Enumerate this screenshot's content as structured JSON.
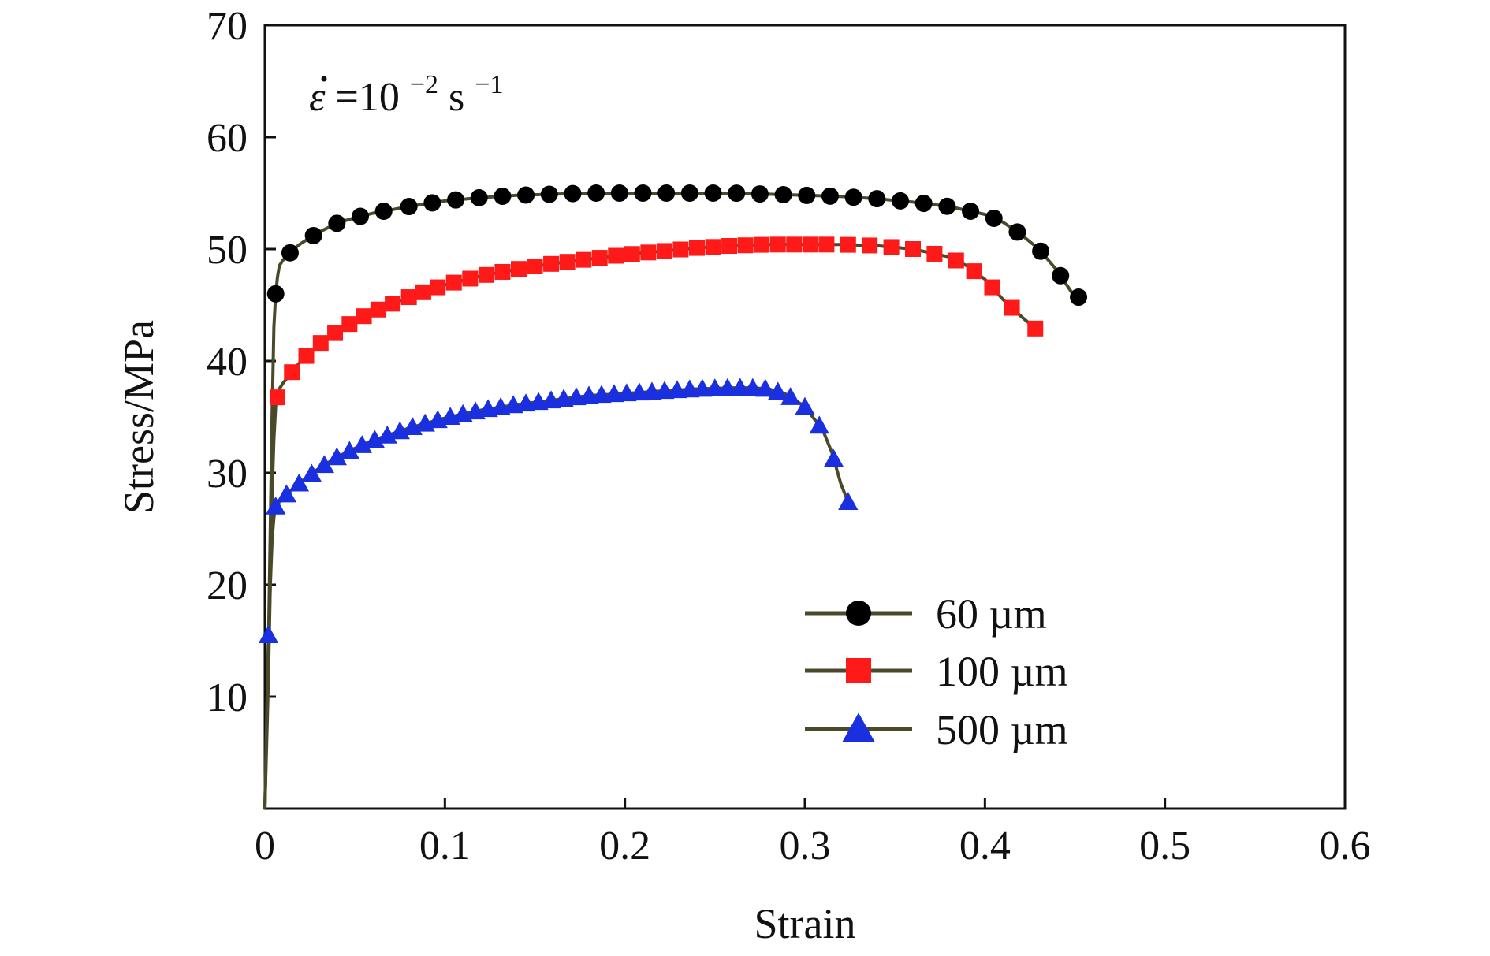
{
  "chart_data": {
    "type": "line",
    "title": "",
    "xlabel": "Strain",
    "ylabel": "Stress/MPa",
    "xlim": [
      0,
      0.6
    ],
    "ylim": [
      0,
      70
    ],
    "xticks": [
      0,
      0.1,
      0.2,
      0.3,
      0.4,
      0.5,
      0.6
    ],
    "xtick_labels": [
      "0",
      "0.1",
      "0.2",
      "0.3",
      "0.4",
      "0.5",
      "0.6"
    ],
    "yticks": [
      10,
      20,
      30,
      40,
      50,
      60,
      70
    ],
    "ytick_labels": [
      "10",
      "20",
      "30",
      "40",
      "50",
      "60",
      "70"
    ],
    "grid": false,
    "legend_position": "bottom-right",
    "annotation": {
      "symbol": "ε",
      "eq": "=10",
      "exp": "−2",
      "unit": " s",
      "unit_exp": "−1"
    },
    "line_color": "#4a4a2a",
    "series": [
      {
        "name": "60 µm",
        "color": "#000000",
        "marker": "circle",
        "x": [
          0.0,
          0.002,
          0.004,
          0.005,
          0.006,
          0.007,
          0.008,
          0.01,
          0.013,
          0.016,
          0.02,
          0.025,
          0.03,
          0.04,
          0.05,
          0.06,
          0.07,
          0.08,
          0.1,
          0.12,
          0.14,
          0.16,
          0.18,
          0.2,
          0.22,
          0.24,
          0.26,
          0.28,
          0.3,
          0.32,
          0.34,
          0.36,
          0.38,
          0.4,
          0.41,
          0.42,
          0.43,
          0.44,
          0.45
        ],
        "y": [
          0,
          15,
          35,
          43,
          46,
          47.5,
          48.5,
          49,
          49.5,
          50,
          50.5,
          51,
          51.5,
          52.3,
          52.8,
          53.2,
          53.5,
          53.8,
          54.3,
          54.6,
          54.8,
          54.9,
          55.0,
          55.0,
          55.0,
          55.0,
          55.0,
          54.9,
          54.8,
          54.7,
          54.5,
          54.2,
          53.8,
          53.1,
          52.4,
          51.3,
          50.0,
          48.1,
          45.7
        ],
        "marker_x": [
          0.006,
          0.014,
          0.027,
          0.04,
          0.053,
          0.066,
          0.08,
          0.093,
          0.106,
          0.119,
          0.132,
          0.145,
          0.158,
          0.171,
          0.184,
          0.197,
          0.21,
          0.223,
          0.236,
          0.249,
          0.262,
          0.275,
          0.288,
          0.301,
          0.314,
          0.327,
          0.34,
          0.353,
          0.366,
          0.379,
          0.392,
          0.405,
          0.418,
          0.431,
          0.442,
          0.452
        ]
      },
      {
        "name": "100 µm",
        "color": "#ff1a1a",
        "marker": "square",
        "x": [
          0.0,
          0.002,
          0.004,
          0.005,
          0.006,
          0.008,
          0.01,
          0.015,
          0.02,
          0.03,
          0.04,
          0.05,
          0.06,
          0.08,
          0.1,
          0.12,
          0.14,
          0.16,
          0.18,
          0.2,
          0.22,
          0.24,
          0.26,
          0.28,
          0.3,
          0.32,
          0.34,
          0.36,
          0.38,
          0.39,
          0.4,
          0.41,
          0.42,
          0.428
        ],
        "y": [
          0,
          12,
          28,
          33,
          36,
          37.5,
          38.0,
          39.0,
          40.0,
          41.5,
          42.6,
          43.6,
          44.4,
          45.7,
          46.8,
          47.6,
          48.2,
          48.7,
          49.1,
          49.5,
          49.8,
          50.1,
          50.3,
          50.4,
          50.4,
          50.4,
          50.3,
          50.0,
          49.3,
          48.5,
          47.3,
          45.5,
          44.0,
          42.9
        ],
        "marker_x": [
          0.007,
          0.015,
          0.023,
          0.031,
          0.039,
          0.047,
          0.055,
          0.063,
          0.071,
          0.08,
          0.088,
          0.096,
          0.105,
          0.114,
          0.123,
          0.132,
          0.141,
          0.15,
          0.159,
          0.168,
          0.177,
          0.186,
          0.195,
          0.204,
          0.213,
          0.222,
          0.231,
          0.24,
          0.249,
          0.258,
          0.267,
          0.276,
          0.285,
          0.294,
          0.303,
          0.312,
          0.324,
          0.336,
          0.348,
          0.36,
          0.372,
          0.384,
          0.394,
          0.404,
          0.415,
          0.428
        ]
      },
      {
        "name": "500 µm",
        "color": "#1a2fe0",
        "marker": "triangle",
        "x": [
          0.0,
          0.001,
          0.002,
          0.003,
          0.004,
          0.005,
          0.006,
          0.008,
          0.01,
          0.015,
          0.02,
          0.03,
          0.04,
          0.05,
          0.06,
          0.08,
          0.1,
          0.12,
          0.14,
          0.16,
          0.18,
          0.2,
          0.22,
          0.24,
          0.26,
          0.27,
          0.28,
          0.29,
          0.3,
          0.31,
          0.315,
          0.32,
          0.325
        ],
        "y": [
          0,
          8,
          15.5,
          20,
          24,
          26,
          27,
          27.4,
          27.8,
          28.5,
          29.2,
          30.4,
          31.4,
          32.2,
          32.9,
          34.0,
          34.9,
          35.6,
          36.1,
          36.5,
          36.9,
          37.1,
          37.3,
          37.5,
          37.6,
          37.6,
          37.5,
          37.0,
          35.9,
          33.8,
          31.8,
          29.0,
          27.0
        ],
        "marker_x": [
          0.002,
          0.006,
          0.012,
          0.019,
          0.026,
          0.033,
          0.04,
          0.047,
          0.054,
          0.061,
          0.068,
          0.075,
          0.082,
          0.089,
          0.096,
          0.103,
          0.11,
          0.117,
          0.124,
          0.131,
          0.138,
          0.145,
          0.152,
          0.159,
          0.166,
          0.173,
          0.18,
          0.187,
          0.194,
          0.201,
          0.208,
          0.215,
          0.222,
          0.229,
          0.236,
          0.243,
          0.25,
          0.257,
          0.264,
          0.271,
          0.278,
          0.285,
          0.292,
          0.3,
          0.308,
          0.316,
          0.324
        ]
      }
    ]
  }
}
